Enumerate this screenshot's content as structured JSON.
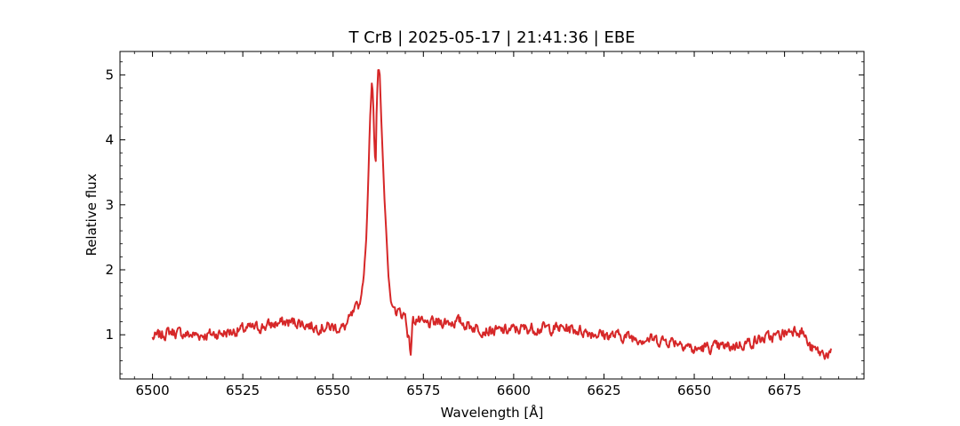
{
  "chart_data": {
    "type": "line",
    "title": "T CrB | 2025-05-17 | 21:41:36 | EBE",
    "xlabel": "Wavelength [Å]",
    "ylabel": "Relative flux",
    "xlim": [
      6491,
      6697
    ],
    "ylim": [
      0.32,
      5.36
    ],
    "x_ticks": [
      6500,
      6525,
      6550,
      6575,
      6600,
      6625,
      6650,
      6675
    ],
    "y_ticks": [
      1,
      2,
      3,
      4,
      5
    ],
    "grid": false,
    "series": [
      {
        "color": "#d62728",
        "x": [
          6500,
          6505,
          6510,
          6515,
          6520,
          6525,
          6530,
          6535,
          6540,
          6545,
          6550,
          6553,
          6556,
          6557.5,
          6558.5,
          6559.2,
          6559.7,
          6560.2,
          6560.8,
          6561.2,
          6561.5,
          6561.8,
          6562.1,
          6562.5,
          6562.9,
          6563.3,
          6563.8,
          6564.3,
          6564.8,
          6565.3,
          6566,
          6567,
          6568,
          6570,
          6571.5,
          6572,
          6573,
          6575,
          6580,
          6585,
          6590,
          6595,
          6600,
          6605,
          6610,
          6615,
          6620,
          6625,
          6630,
          6635,
          6640,
          6645,
          6648,
          6650,
          6652,
          6655,
          6660,
          6665,
          6670,
          6673,
          6676,
          6678,
          6680,
          6682,
          6685,
          6688
        ],
        "y": [
          0.95,
          1.05,
          1.0,
          1.0,
          1.03,
          1.08,
          1.12,
          1.18,
          1.2,
          1.12,
          1.12,
          1.1,
          1.35,
          1.5,
          1.9,
          2.5,
          3.3,
          4.3,
          4.95,
          4.4,
          3.8,
          3.6,
          4.6,
          5.1,
          5.05,
          4.4,
          3.7,
          3.0,
          2.5,
          1.9,
          1.5,
          1.4,
          1.35,
          1.3,
          0.72,
          1.2,
          1.25,
          1.15,
          1.2,
          1.2,
          1.1,
          1.05,
          1.08,
          1.1,
          1.1,
          1.1,
          1.05,
          1.0,
          0.98,
          0.95,
          0.92,
          0.9,
          0.85,
          0.75,
          0.8,
          0.8,
          0.82,
          0.88,
          0.95,
          0.98,
          1.05,
          1.1,
          1.05,
          0.8,
          0.72,
          0.7
        ]
      }
    ]
  }
}
